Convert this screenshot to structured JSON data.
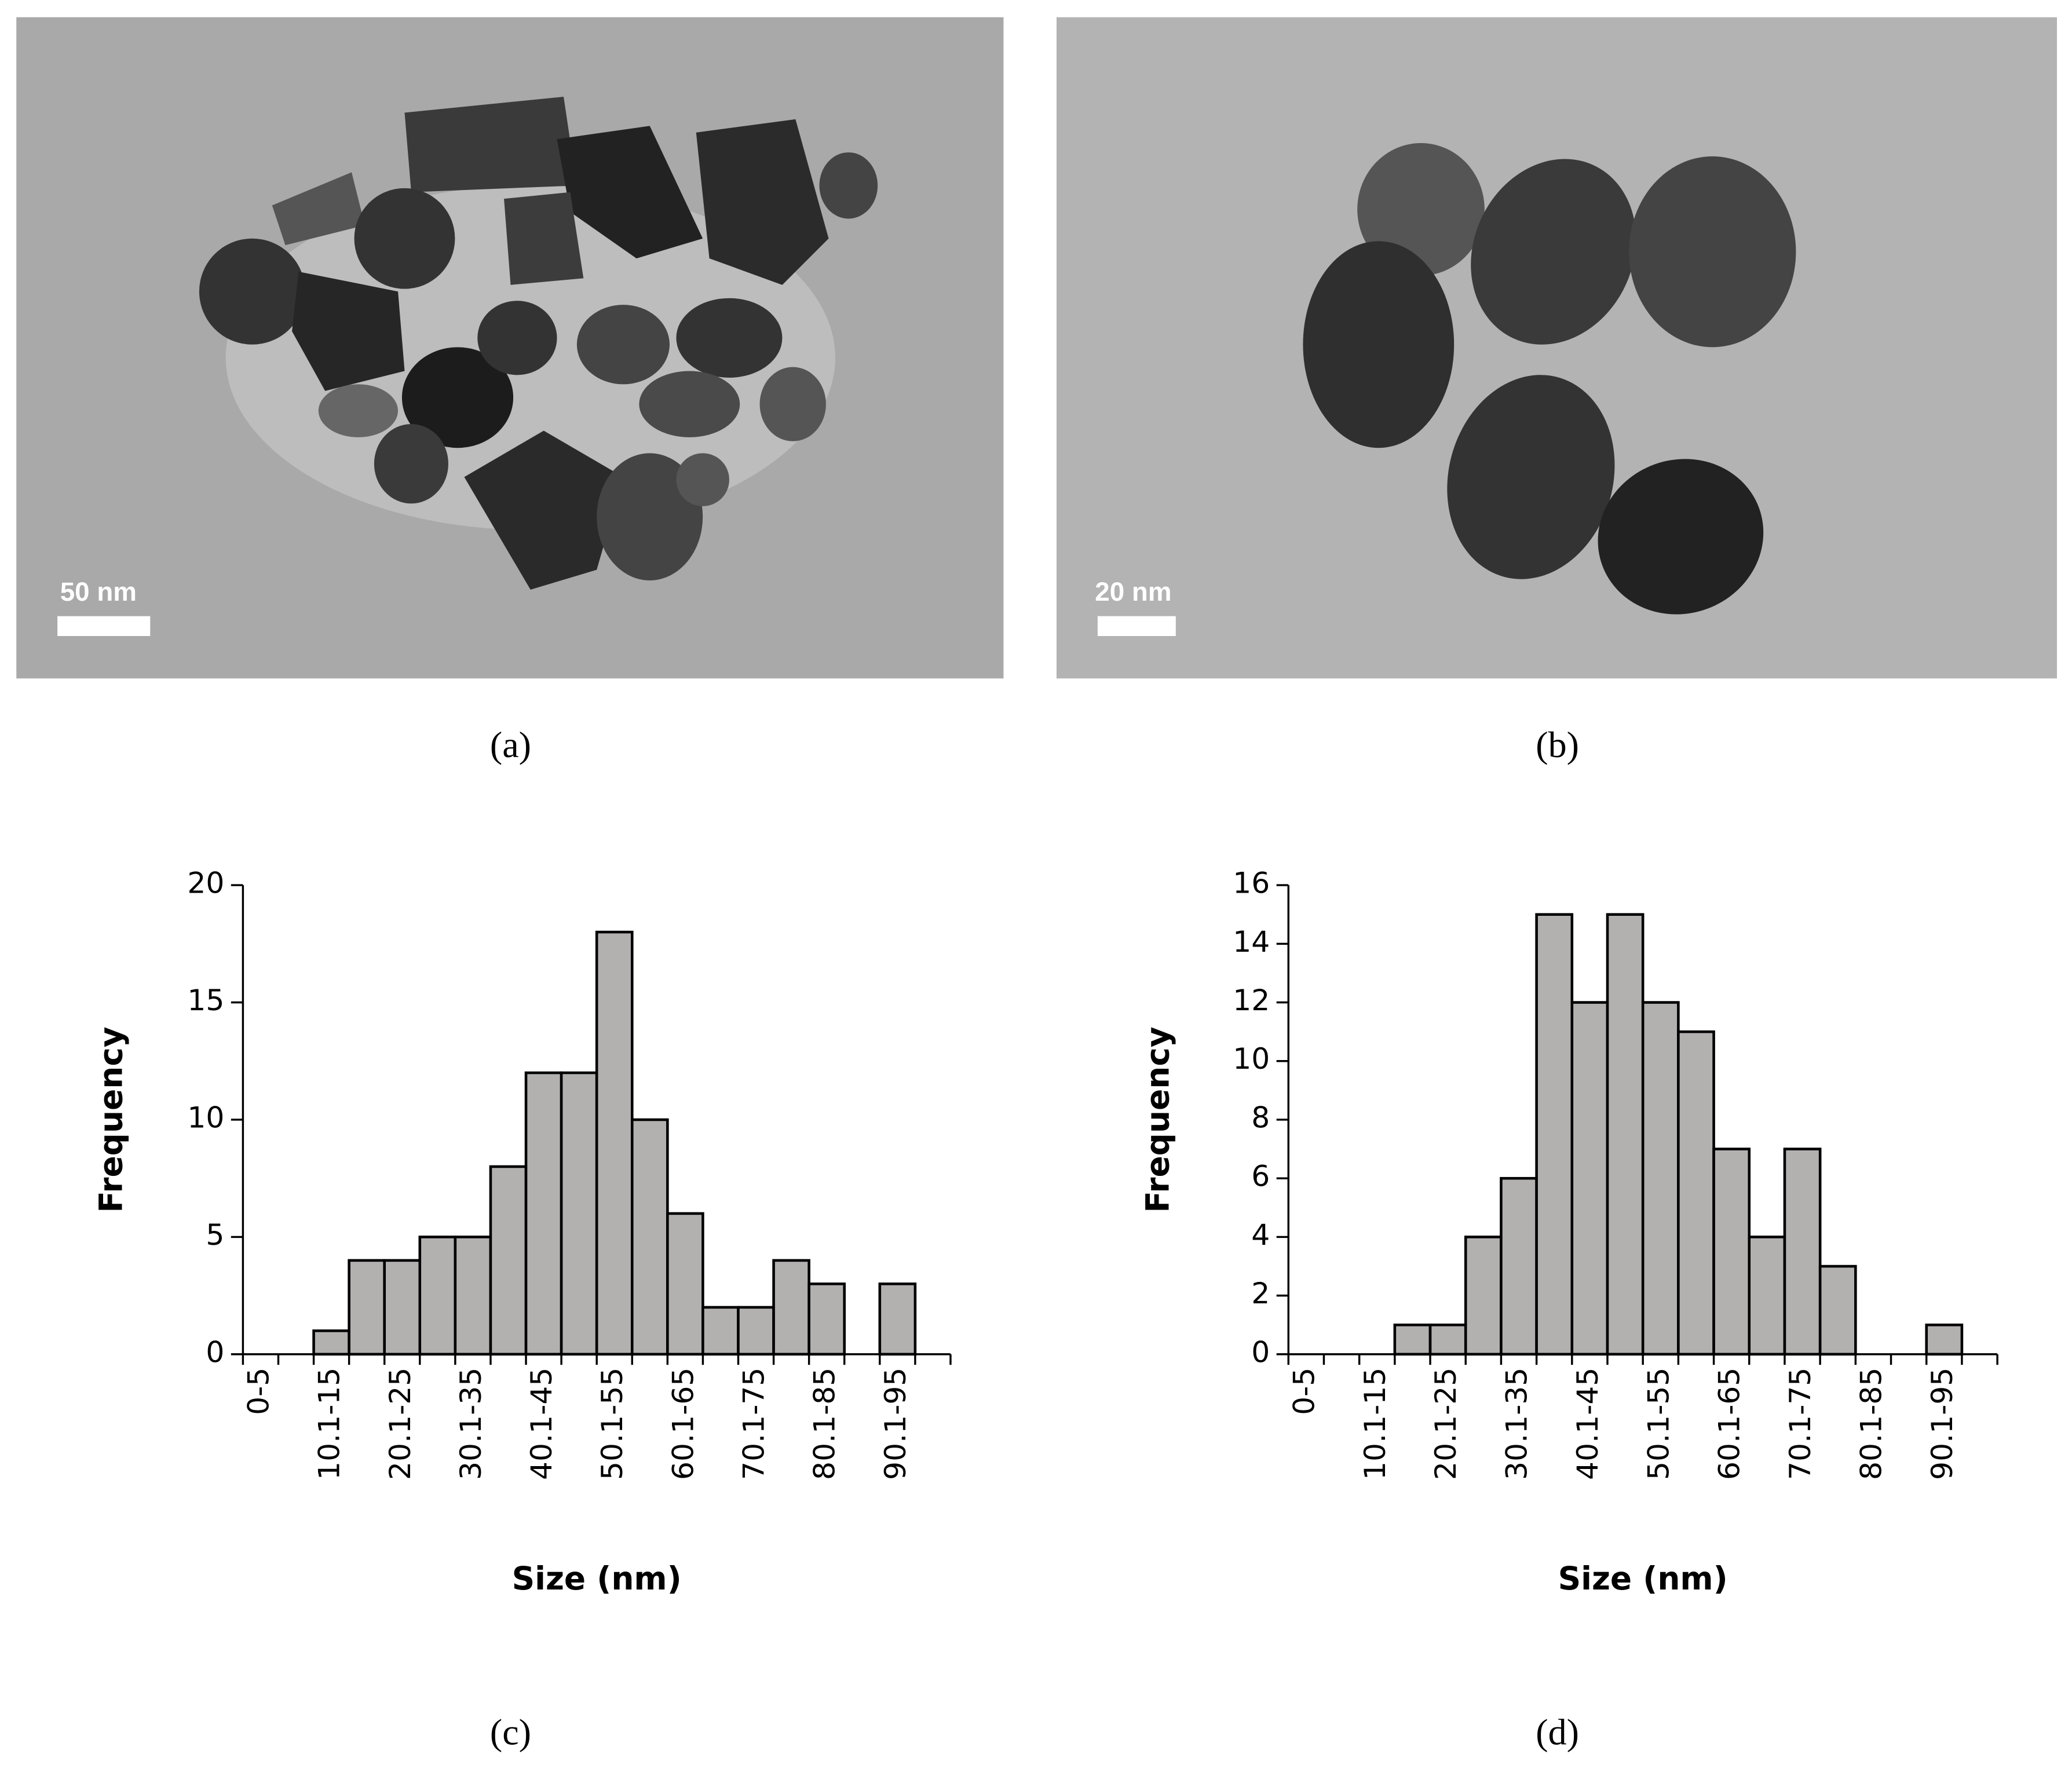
{
  "images": [
    {
      "panel_label": "(a)",
      "scale_bar": "50 nm"
    },
    {
      "panel_label": "(b)",
      "scale_bar": "20 nm"
    }
  ],
  "chart_data": [
    {
      "type": "bar",
      "panel_label": "(c)",
      "x_label": "Size (nm)",
      "y_label": "Frequency",
      "categories": [
        "0-5",
        null,
        "10.1-15",
        null,
        "20.1-25",
        null,
        "30.1-35",
        null,
        "40.1-45",
        null,
        "50.1-55",
        null,
        "60.1-65",
        null,
        "70.1-75",
        null,
        "80.1-85",
        null,
        "90.1-95",
        null
      ],
      "values": [
        0,
        0,
        1,
        4,
        4,
        5,
        5,
        8,
        12,
        12,
        18,
        10,
        6,
        2,
        2,
        4,
        3,
        0,
        3,
        0
      ],
      "color": "#b3b0b0",
      "ylim": [
        0,
        20
      ],
      "yticks": [
        0,
        5,
        10,
        15,
        20
      ]
    },
    {
      "type": "bar",
      "panel_label": "(d)",
      "x_label": "Size (nm)",
      "y_label": "Frequency",
      "categories": [
        "0-5",
        null,
        "10.1-15",
        null,
        "20.1-25",
        null,
        "30.1-35",
        null,
        "40.1-45",
        null,
        "50.1-55",
        null,
        "60.1-65",
        null,
        "70.1-75",
        null,
        "80.1-85",
        null,
        "90.1-95",
        null
      ],
      "values": [
        0,
        0,
        0,
        1,
        1,
        4,
        6,
        15,
        12,
        15,
        12,
        11,
        7,
        4,
        7,
        3,
        0,
        0,
        1,
        0
      ],
      "color": "#b3b0b0",
      "ylim": [
        0,
        16
      ],
      "yticks": [
        0,
        2,
        4,
        6,
        8,
        10,
        12,
        14,
        16
      ]
    }
  ]
}
